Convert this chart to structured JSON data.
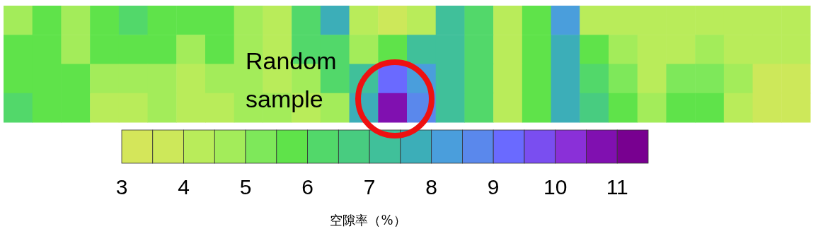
{
  "chart_data": {
    "type": "heatmap",
    "categories": [
      null,
      null,
      null,
      null,
      null,
      null,
      null,
      null,
      null,
      null,
      null,
      null,
      null,
      null,
      null,
      null,
      null,
      null,
      null,
      null,
      null,
      null,
      null,
      null,
      null,
      null,
      null,
      null
    ],
    "y_categories": [
      null,
      null,
      null,
      null
    ],
    "cells": [
      [
        4.75,
        5.75,
        4.75,
        5.75,
        6.25,
        5.75,
        5.75,
        5.75,
        4.75,
        4.25,
        6.25,
        7.75,
        4.25,
        3.75,
        4.25,
        7.25,
        6.25,
        4.25,
        5.75,
        8.25,
        4.25,
        4.25,
        4.25,
        4.25,
        4.25,
        4.25,
        4.25,
        4.25
      ],
      [
        5.75,
        5.75,
        4.75,
        5.75,
        5.75,
        5.75,
        4.75,
        5.75,
        4.75,
        4.25,
        6.25,
        6.25,
        4.75,
        5.75,
        7.25,
        7.25,
        6.25,
        4.25,
        5.75,
        7.75,
        5.75,
        4.75,
        4.25,
        4.25,
        4.75,
        4.25,
        4.25,
        4.25
      ],
      [
        5.75,
        5.75,
        5.75,
        4.75,
        4.75,
        4.75,
        4.25,
        4.75,
        4.75,
        4.25,
        4.75,
        6.25,
        7.25,
        9.25,
        8.25,
        7.25,
        6.25,
        4.25,
        5.75,
        7.75,
        6.25,
        5.25,
        4.25,
        5.25,
        5.25,
        4.75,
        3.75,
        3.75
      ],
      [
        6.25,
        5.75,
        5.75,
        4.25,
        4.25,
        4.75,
        4.25,
        4.25,
        4.75,
        4.75,
        4.25,
        4.75,
        7.75,
        10.75,
        8.75,
        7.25,
        6.25,
        4.25,
        5.75,
        7.75,
        6.75,
        5.75,
        4.75,
        5.75,
        5.75,
        4.25,
        3.75,
        3.75
      ]
    ],
    "clim": [
      3,
      11.5
    ],
    "cticks": [
      3,
      4,
      5,
      6,
      7,
      8,
      9,
      10,
      11
    ],
    "clabel": "空隙率（%）",
    "annotations": [
      "Random sample"
    ]
  }
}
